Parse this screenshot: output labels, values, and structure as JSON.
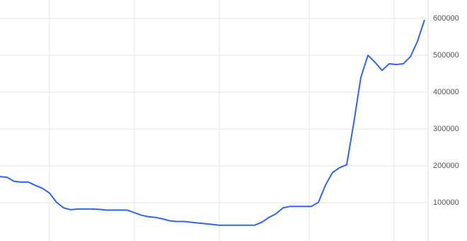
{
  "chart_data": {
    "type": "line",
    "color": "#2f66ea",
    "values": [
      171000,
      169000,
      158000,
      156000,
      156000,
      147000,
      139000,
      126000,
      101000,
      86000,
      81000,
      83000,
      83000,
      83000,
      82000,
      80000,
      80000,
      80000,
      80000,
      73000,
      66000,
      62000,
      60000,
      56000,
      51000,
      49000,
      49000,
      47000,
      45000,
      43000,
      41000,
      39000,
      39000,
      39000,
      39000,
      39000,
      39000,
      47000,
      60000,
      70000,
      86000,
      90000,
      90000,
      90000,
      90000,
      101000,
      148000,
      182000,
      195000,
      203000,
      317000,
      440000,
      500000,
      481000,
      459000,
      477000,
      475000,
      477000,
      496000,
      538000,
      596000
    ],
    "ylim": [
      0,
      650000
    ],
    "yticks": [
      100000,
      200000,
      300000,
      400000,
      500000,
      600000
    ],
    "grid": true
  }
}
